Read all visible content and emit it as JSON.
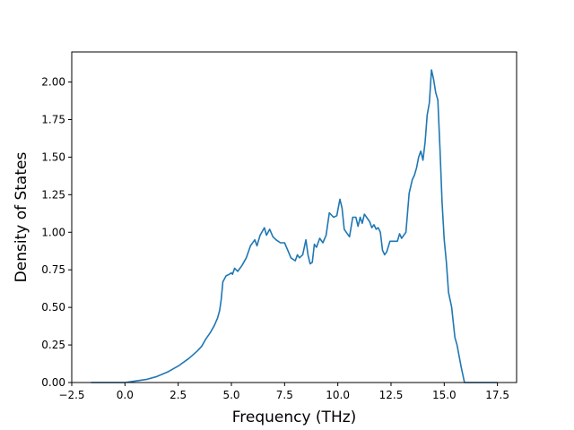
{
  "chart_data": {
    "type": "line",
    "title": "",
    "xlabel": "Frequency (THz)",
    "ylabel": "Density of States",
    "xlim": [
      -2.5,
      18.4
    ],
    "ylim": [
      0,
      2.2
    ],
    "grid": false,
    "xticks": [
      -2.5,
      0.0,
      2.5,
      5.0,
      7.5,
      10.0,
      12.5,
      15.0,
      17.5
    ],
    "xtick_labels": [
      "−2.5",
      "0.0",
      "2.5",
      "5.0",
      "7.5",
      "10.0",
      "12.5",
      "15.0",
      "17.5"
    ],
    "yticks": [
      0.0,
      0.25,
      0.5,
      0.75,
      1.0,
      1.25,
      1.5,
      1.75,
      2.0
    ],
    "ytick_labels": [
      "0.00",
      "0.25",
      "0.50",
      "0.75",
      "1.00",
      "1.25",
      "1.50",
      "1.75",
      "2.00"
    ],
    "series": [
      {
        "color": "#1f77b4",
        "x": [
          -1.6,
          -1.0,
          -0.5,
          0.0,
          0.5,
          1.0,
          1.5,
          2.0,
          2.5,
          3.0,
          3.4,
          3.6,
          3.8,
          4.0,
          4.2,
          4.35,
          4.45,
          4.52,
          4.6,
          4.75,
          4.9,
          5.0,
          5.05,
          5.15,
          5.3,
          5.5,
          5.7,
          5.9,
          6.1,
          6.2,
          6.35,
          6.55,
          6.65,
          6.8,
          6.95,
          7.1,
          7.3,
          7.5,
          7.65,
          7.8,
          8.0,
          8.1,
          8.2,
          8.35,
          8.5,
          8.6,
          8.7,
          8.8,
          8.9,
          9.0,
          9.15,
          9.3,
          9.45,
          9.6,
          9.8,
          9.95,
          10.1,
          10.2,
          10.3,
          10.4,
          10.55,
          10.7,
          10.85,
          10.95,
          11.05,
          11.15,
          11.25,
          11.35,
          11.5,
          11.6,
          11.7,
          11.8,
          11.9,
          12.0,
          12.1,
          12.2,
          12.3,
          12.45,
          12.6,
          12.8,
          12.9,
          13.0,
          13.1,
          13.2,
          13.35,
          13.5,
          13.6,
          13.7,
          13.8,
          13.9,
          14.0,
          14.1,
          14.2,
          14.3,
          14.4,
          14.5,
          14.6,
          14.7,
          14.8,
          14.9,
          15.0,
          15.1,
          15.2,
          15.35,
          15.5,
          15.6,
          15.8,
          15.95,
          16.1,
          17.5
        ],
        "y": [
          0.0,
          0.0,
          0.0,
          0.0,
          0.01,
          0.02,
          0.04,
          0.07,
          0.11,
          0.16,
          0.21,
          0.24,
          0.29,
          0.33,
          0.38,
          0.43,
          0.48,
          0.55,
          0.67,
          0.71,
          0.72,
          0.73,
          0.72,
          0.76,
          0.74,
          0.78,
          0.83,
          0.91,
          0.95,
          0.91,
          0.98,
          1.03,
          0.98,
          1.02,
          0.97,
          0.95,
          0.93,
          0.93,
          0.88,
          0.83,
          0.81,
          0.85,
          0.83,
          0.85,
          0.95,
          0.85,
          0.79,
          0.8,
          0.92,
          0.9,
          0.96,
          0.93,
          0.98,
          1.13,
          1.1,
          1.11,
          1.22,
          1.16,
          1.02,
          1.0,
          0.97,
          1.1,
          1.1,
          1.04,
          1.1,
          1.06,
          1.12,
          1.1,
          1.07,
          1.03,
          1.05,
          1.02,
          1.03,
          1.0,
          0.88,
          0.85,
          0.87,
          0.94,
          0.94,
          0.94,
          0.99,
          0.96,
          0.98,
          1.0,
          1.26,
          1.35,
          1.38,
          1.43,
          1.5,
          1.54,
          1.48,
          1.6,
          1.78,
          1.86,
          2.08,
          2.02,
          1.93,
          1.88,
          1.55,
          1.2,
          0.95,
          0.8,
          0.6,
          0.5,
          0.3,
          0.25,
          0.1,
          0.0,
          0.0,
          0.0
        ]
      }
    ]
  }
}
